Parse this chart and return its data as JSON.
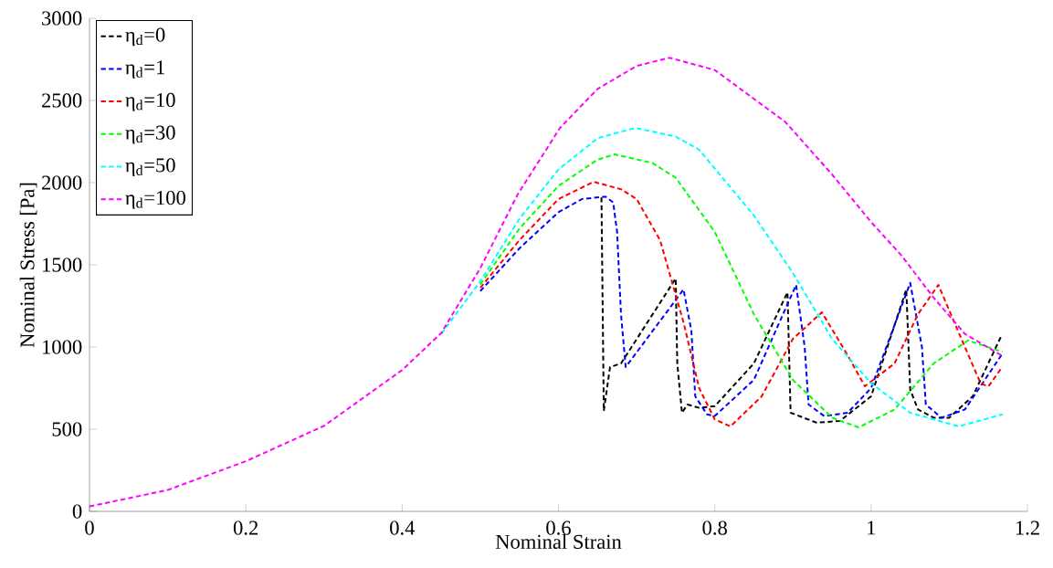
{
  "chart_data": {
    "type": "line",
    "xlabel": "Nominal Strain",
    "ylabel": "Nominal Stress [Pa]",
    "xlim": [
      0,
      1.2
    ],
    "ylim": [
      0,
      3000
    ],
    "xticks": [
      0,
      0.2,
      0.4,
      0.6,
      0.8,
      1,
      1.2
    ],
    "yticks": [
      0,
      500,
      1000,
      1500,
      2000,
      2500,
      3000
    ],
    "legend": "top left",
    "line_style": "dashed",
    "series": [
      {
        "name": "η$_{d}$=0",
        "color": "#000000",
        "x": [
          0.655,
          0.658,
          0.666,
          0.68,
          0.75,
          0.752,
          0.758,
          0.765,
          0.78,
          0.8,
          0.85,
          0.893,
          0.897,
          0.93,
          0.96,
          1.0,
          1.045,
          1.05,
          1.06,
          1.08,
          1.1,
          1.13,
          1.167
        ],
        "values": [
          1910,
          611,
          878,
          900,
          1417,
          900,
          600,
          650,
          630,
          640,
          900,
          1333,
          600,
          540,
          550,
          700,
          1350,
          740,
          620,
          570,
          570,
          700,
          1072
        ]
      },
      {
        "name": "η$_{d}$=1",
        "color": "#0000ff",
        "x": [
          0.5,
          0.55,
          0.6,
          0.63,
          0.66,
          0.67,
          0.675,
          0.68,
          0.686,
          0.76,
          0.77,
          0.775,
          0.79,
          0.8,
          0.85,
          0.904,
          0.915,
          0.92,
          0.94,
          0.97,
          1.0,
          1.05,
          1.065,
          1.07,
          1.09,
          1.12,
          1.168
        ],
        "values": [
          1340,
          1600,
          1820,
          1900,
          1915,
          1880,
          1700,
          1200,
          878,
          1350,
          1100,
          700,
          590,
          580,
          800,
          1378,
          1000,
          650,
          580,
          600,
          750,
          1390,
          1000,
          650,
          570,
          620,
          960
        ]
      },
      {
        "name": "η$_{d}$=10",
        "color": "#ff0000",
        "x": [
          0.5,
          0.55,
          0.6,
          0.645,
          0.68,
          0.7,
          0.73,
          0.76,
          0.78,
          0.8,
          0.82,
          0.86,
          0.9,
          0.937,
          0.97,
          0.992,
          1.03,
          1.06,
          1.086,
          1.12,
          1.14,
          1.15,
          1.168
        ],
        "values": [
          1360,
          1650,
          1900,
          2005,
          1960,
          1900,
          1650,
          1150,
          750,
          560,
          517,
          700,
          1050,
          1211,
          950,
          761,
          900,
          1200,
          1378,
          1000,
          780,
          760,
          880
        ]
      },
      {
        "name": "η$_{d}$=30",
        "color": "#00ff00",
        "x": [
          0.5,
          0.55,
          0.6,
          0.65,
          0.672,
          0.72,
          0.75,
          0.8,
          0.85,
          0.9,
          0.95,
          0.984,
          1.03,
          1.08,
          1.124,
          1.168
        ],
        "values": [
          1380,
          1720,
          1980,
          2140,
          2172,
          2120,
          2030,
          1700,
          1200,
          800,
          570,
          511,
          620,
          900,
          1040,
          970
        ]
      },
      {
        "name": "η$_{d}$=50",
        "color": "#00ffff",
        "x": [
          0.45,
          0.5,
          0.55,
          0.6,
          0.65,
          0.698,
          0.75,
          0.78,
          0.85,
          0.9,
          0.95,
          1.0,
          1.05,
          1.112,
          1.168
        ],
        "values": [
          1080,
          1400,
          1780,
          2080,
          2270,
          2333,
          2280,
          2200,
          1800,
          1450,
          1050,
          780,
          600,
          517,
          590
        ]
      },
      {
        "name": "η$_{d}$=100",
        "color": "#ff00ff",
        "x": [
          0,
          0.1,
          0.2,
          0.3,
          0.4,
          0.45,
          0.5,
          0.548,
          0.602,
          0.65,
          0.7,
          0.742,
          0.8,
          0.89,
          0.95,
          1.0,
          1.039,
          1.08,
          1.12,
          1.168
        ],
        "values": [
          30,
          130,
          305,
          520,
          860,
          1085,
          1480,
          1930,
          2333,
          2570,
          2710,
          2760,
          2685,
          2370,
          2050,
          1760,
          1556,
          1300,
          1080,
          945
        ]
      }
    ]
  }
}
